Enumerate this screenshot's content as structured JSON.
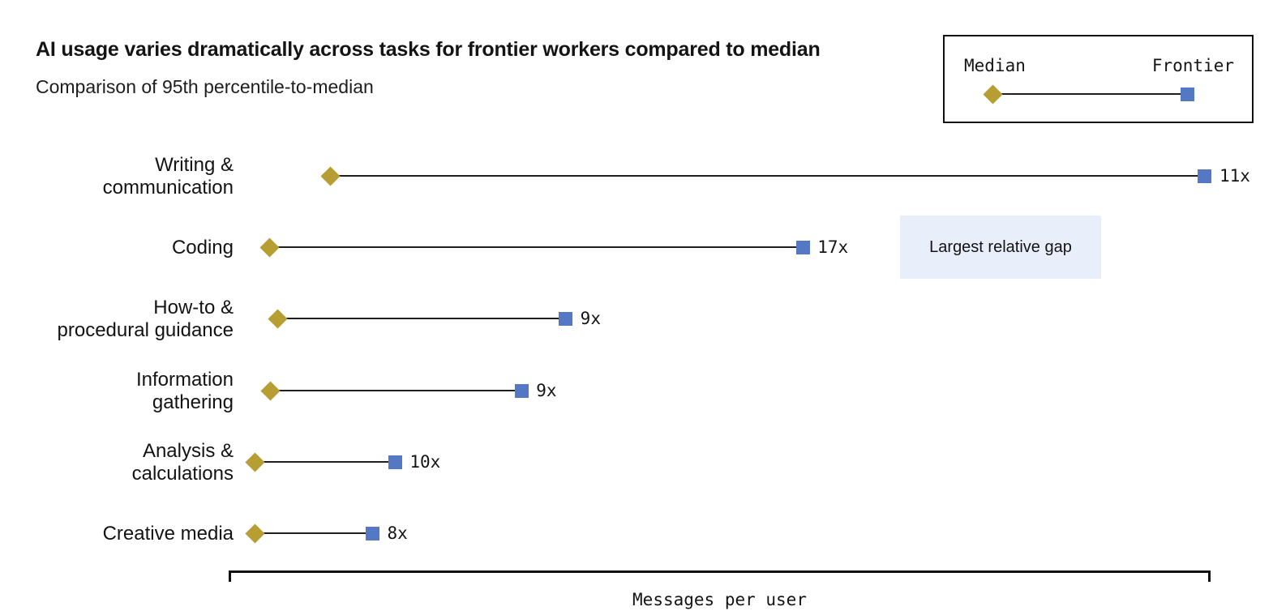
{
  "header": {
    "title": "AI usage varies dramatically across tasks for frontier workers compared to median",
    "subtitle": "Comparison of 95th percentile-to-median"
  },
  "legend": {
    "median_label": "Median",
    "frontier_label": "Frontier",
    "position": "top-right"
  },
  "annotation": {
    "text": "Largest relative gap",
    "background": "#e9eefb",
    "attached_to_category": "Coding"
  },
  "colors": {
    "median_marker": "#b79e33",
    "frontier_marker": "#5478c3",
    "connector_line": "#1f1f1f",
    "text": "#141414"
  },
  "axis": {
    "xlabel": "Messages per user"
  },
  "chart_data": {
    "type": "dumbbell",
    "title": "AI usage varies dramatically across tasks for frontier workers compared to median",
    "subtitle": "Comparison of 95th percentile-to-median",
    "xlabel": "Messages per user",
    "x_ticks_shown": false,
    "legend_position": "top-right",
    "series_meta": [
      {
        "name": "Median",
        "marker": "diamond",
        "color": "#b79e33"
      },
      {
        "name": "Frontier",
        "marker": "square",
        "color": "#5478c3"
      }
    ],
    "rows": [
      {
        "category": "Writing &\ncommunication",
        "ratio_label": "11x",
        "median_pos": 0.103,
        "frontier_pos": 0.995
      },
      {
        "category": "Coding",
        "ratio_label": "17x",
        "median_pos": 0.041,
        "frontier_pos": 0.585
      },
      {
        "category": "How-to &\nprocedural guidance",
        "ratio_label": "9x",
        "median_pos": 0.049,
        "frontier_pos": 0.343
      },
      {
        "category": "Information\ngathering",
        "ratio_label": "9x",
        "median_pos": 0.042,
        "frontier_pos": 0.298
      },
      {
        "category": "Analysis &\ncalculations",
        "ratio_label": "10x",
        "median_pos": 0.026,
        "frontier_pos": 0.169
      },
      {
        "category": "Creative media",
        "ratio_label": "8x",
        "median_pos": 0.026,
        "frontier_pos": 0.146
      }
    ]
  }
}
